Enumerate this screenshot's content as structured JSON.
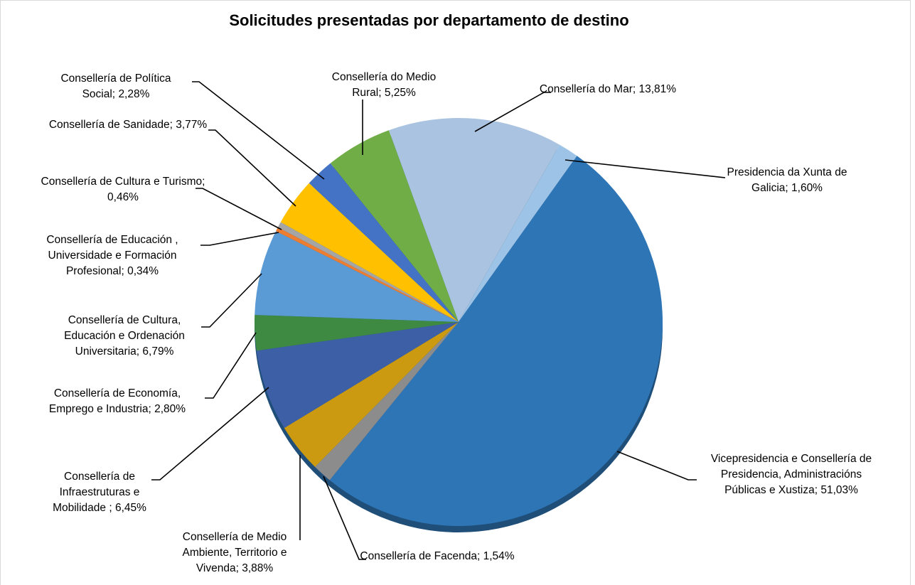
{
  "chart_data": {
    "type": "pie",
    "title": "Solicitudes presentadas por departamento de destino",
    "categories": [
      "Consellería do Mar;",
      "Presidencia da Xunta de Galicia;",
      "Vicepresidencia e Consellería de Presidencia, Administracións Públicas e Xustiza;",
      "Consellería de Facenda;",
      "Consellería de Medio Ambiente, Territorio e Vivenda;",
      "Consellería de Infraestruturas e Mobilidade ;",
      "Consellería de Economía, Emprego e Industria;",
      "Consellería de Cultura, Educación e Ordenación Universitaria;",
      "Consellería de Educación , Universidade e Formación Profesional;",
      "Consellería de Cultura e Turismo;",
      "Consellería de Sanidade;",
      "Consellería de Política Social;",
      "Consellería do Medio Rural;"
    ],
    "values": [
      13.81,
      1.6,
      51.03,
      1.54,
      3.88,
      6.45,
      2.8,
      6.79,
      0.34,
      0.46,
      3.77,
      2.28,
      5.25
    ],
    "value_labels": [
      "13,81%",
      "1,60%",
      "51,03%",
      "1,54%",
      "3,88%",
      "6,45%",
      "2,80%",
      "6,79%",
      "0,34%",
      "0,46%",
      "3,77%",
      "2,28%",
      "5,25%"
    ],
    "colors": [
      "#aac3e0",
      "#9dc3e6",
      "#2e75b6",
      "#8c8c8c",
      "#cc9a10",
      "#3d5fa5",
      "#3f8a42",
      "#5b9bd5",
      "#ed7d31",
      "#a5a5a5",
      "#ffc000",
      "#4472c4",
      "#70ad47"
    ]
  }
}
